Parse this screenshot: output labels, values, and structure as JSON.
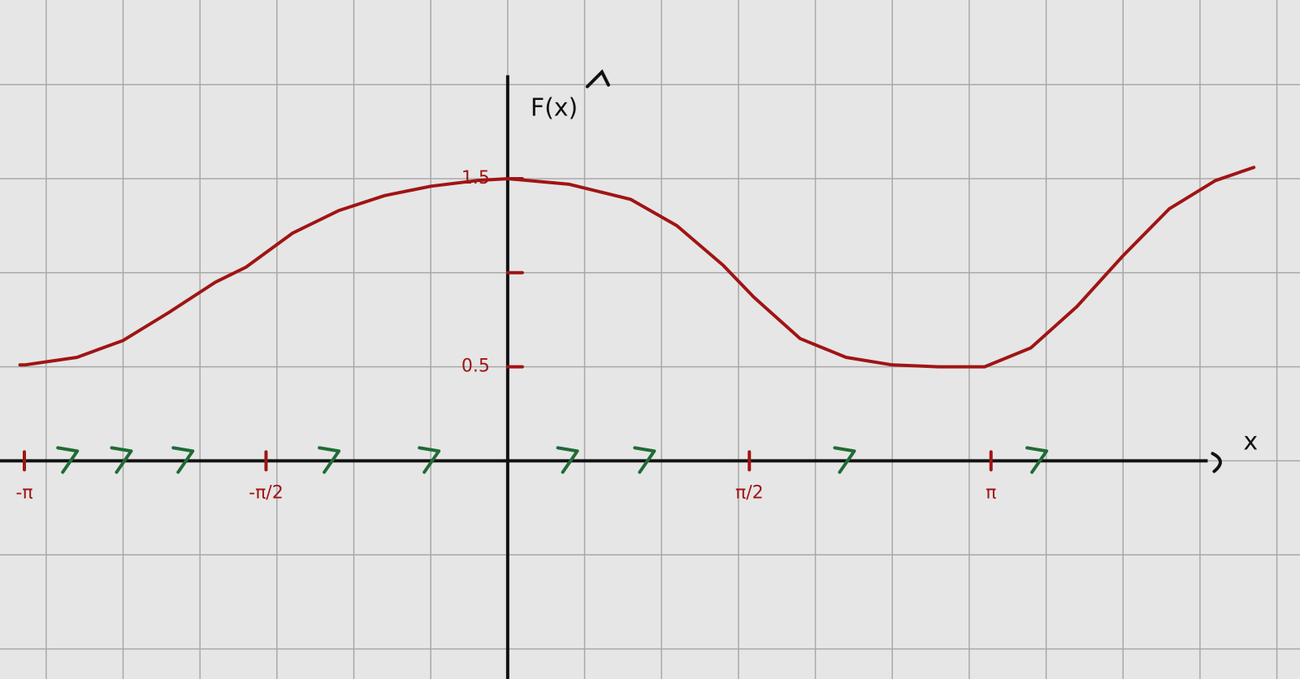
{
  "colors": {
    "background": "#e6e6e6",
    "grid": "#a8a8a8",
    "axis": "#111111",
    "curve": "#a01414",
    "arrows": "#1f6b35"
  },
  "chart_data": {
    "type": "line",
    "title": "",
    "xlabel": "x",
    "ylabel": "F(x)",
    "grid": true,
    "x_range": [
      -3.3,
      5.15
    ],
    "y_range": [
      -1.16,
      2.45
    ],
    "x_ticks": [
      {
        "value": -3.1416,
        "label": "-π"
      },
      {
        "value": -1.5708,
        "label": "-π/2"
      },
      {
        "value": 1.5708,
        "label": "π/2"
      },
      {
        "value": 3.1416,
        "label": "π"
      }
    ],
    "y_ticks": [
      {
        "value": 0.5,
        "label": "0.5"
      },
      {
        "value": 1.0,
        "label": ""
      },
      {
        "value": 1.5,
        "label": "1.5"
      }
    ],
    "series": [
      {
        "name": "",
        "x": [
          -3.17,
          -3.14,
          -2.8,
          -2.5,
          -2.2,
          -1.9,
          -1.7,
          -1.4,
          -1.1,
          -0.8,
          -0.5,
          -0.2,
          0.0,
          0.4,
          0.8,
          1.1,
          1.4,
          1.6,
          1.9,
          2.2,
          2.5,
          2.8,
          3.1,
          3.4,
          3.7,
          4.0,
          4.3,
          4.6,
          4.85
        ],
        "y": [
          0.51,
          0.51,
          0.55,
          0.64,
          0.79,
          0.95,
          1.03,
          1.21,
          1.33,
          1.41,
          1.46,
          1.49,
          1.5,
          1.47,
          1.39,
          1.25,
          1.04,
          0.87,
          0.65,
          0.55,
          0.51,
          0.5,
          0.5,
          0.6,
          0.82,
          1.09,
          1.34,
          1.49,
          1.56
        ]
      }
    ],
    "direction_arrows": {
      "direction": "positive",
      "x": [
        -2.85,
        -2.5,
        -2.1,
        -1.15,
        -0.5,
        0.4,
        0.9,
        2.2,
        3.45
      ]
    }
  }
}
